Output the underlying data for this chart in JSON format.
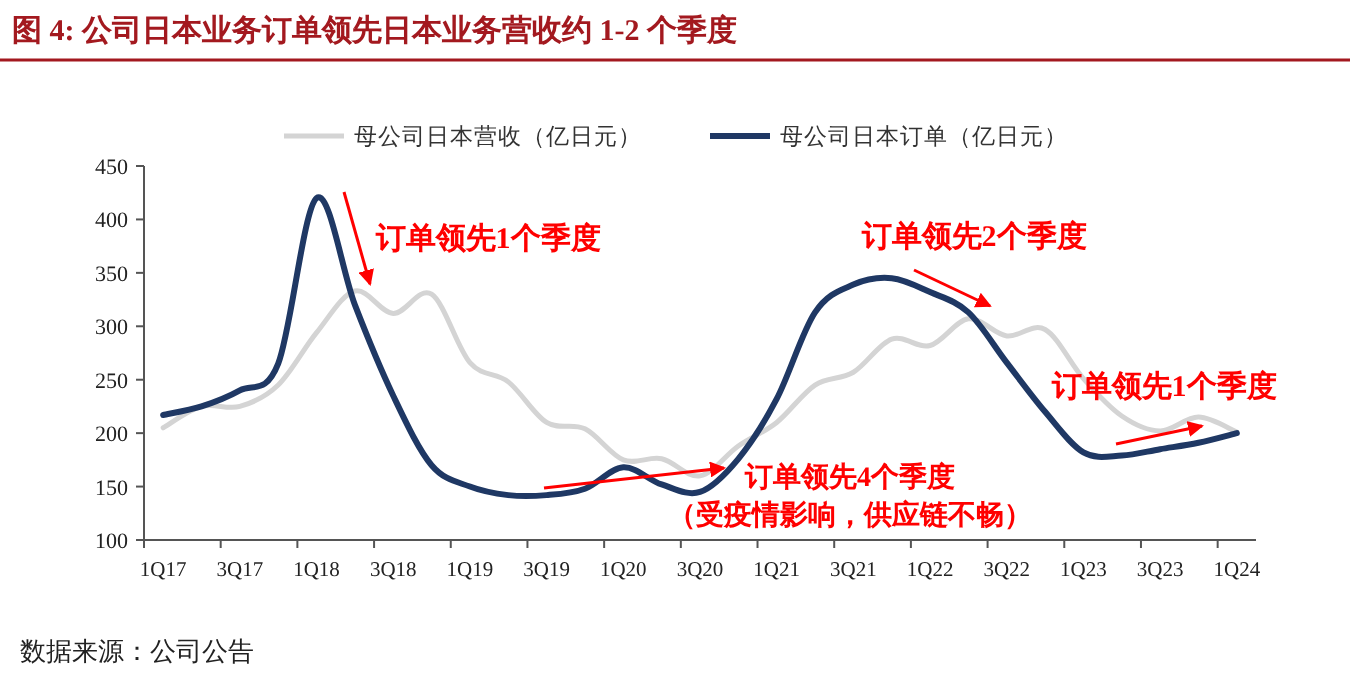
{
  "chart_data": {
    "type": "line",
    "title": "图 4:  公司日本业务订单领先日本业务营收约 1-2 个季度",
    "categories": [
      "1Q17",
      null,
      "3Q17",
      null,
      "1Q18",
      null,
      "3Q18",
      null,
      "1Q19",
      null,
      "3Q19",
      null,
      "1Q20",
      null,
      "3Q20",
      null,
      "1Q21",
      null,
      "3Q21",
      null,
      "1Q22",
      null,
      "3Q22",
      null,
      "1Q23",
      null,
      "3Q23",
      null,
      "1Q24"
    ],
    "series": [
      {
        "name": "母公司日本营收（亿日元）",
        "color": "#d4d4d4",
        "values": [
          205,
          225,
          225,
          245,
          294,
          333,
          312,
          330,
          266,
          248,
          210,
          204,
          175,
          176,
          160,
          188,
          210,
          245,
          257,
          288,
          282,
          307,
          291,
          297,
          251,
          216,
          202,
          215,
          201
        ]
      },
      {
        "name": "母公司日本订单（亿日元）",
        "color": "#1f3864",
        "values": [
          217,
          225,
          240,
          265,
          420,
          320,
          235,
          170,
          150,
          142,
          142,
          148,
          168,
          152,
          145,
          176,
          232,
          313,
          339,
          345,
          332,
          313,
          266,
          220,
          182,
          179,
          185,
          191,
          200
        ]
      }
    ],
    "ylim": [
      100,
      450
    ],
    "yticks": [
      100,
      150,
      200,
      250,
      300,
      350,
      400,
      450
    ],
    "legend": "top",
    "grid": false,
    "annotations": [
      "订单领先1个季度",
      "订单领先4个季度",
      "（受疫情影响，供应链不畅）",
      "订单领先2个季度",
      "订单领先1个季度",
      "数据来源：公司公告"
    ]
  }
}
